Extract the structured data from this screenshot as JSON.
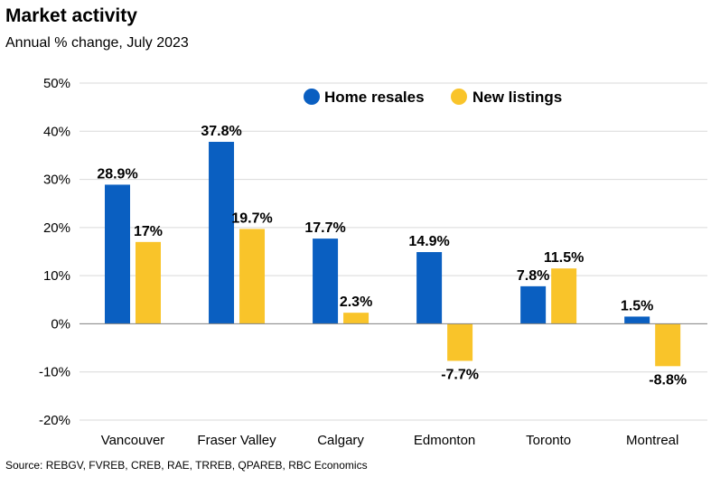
{
  "title": "Market activity",
  "subtitle": "Annual % change, July 2023",
  "source": "Source: REBGV, FVREB, CREB, RAE, TRREB, QPAREB, RBC Economics",
  "colors": {
    "home_resales": "#0a5fc1",
    "new_listings": "#f9c42a",
    "grid": "#d9d9d9",
    "axis": "#808080"
  },
  "chart_data": {
    "type": "bar",
    "categories": [
      "Vancouver",
      "Fraser Valley",
      "Calgary",
      "Edmonton",
      "Toronto",
      "Montreal"
    ],
    "series": [
      {
        "name": "Home resales",
        "values": [
          28.9,
          37.8,
          17.7,
          14.9,
          7.8,
          1.5
        ],
        "labels": [
          "28.9%",
          "37.8%",
          "17.7%",
          "14.9%",
          "7.8%",
          "1.5%"
        ]
      },
      {
        "name": "New listings",
        "values": [
          17,
          19.7,
          2.3,
          -7.7,
          11.5,
          -8.8
        ],
        "labels": [
          "17%",
          "19.7%",
          "2.3%",
          "-7.7%",
          "11.5%",
          "-8.8%"
        ]
      }
    ],
    "yticks": [
      -20,
      -10,
      0,
      10,
      20,
      30,
      40,
      50
    ],
    "ytick_labels": [
      "-20%",
      "-10%",
      "0%",
      "10%",
      "20%",
      "30%",
      "40%",
      "50%"
    ],
    "ylim": [
      -20,
      50
    ],
    "grid": true,
    "legend_position": "top-center"
  }
}
